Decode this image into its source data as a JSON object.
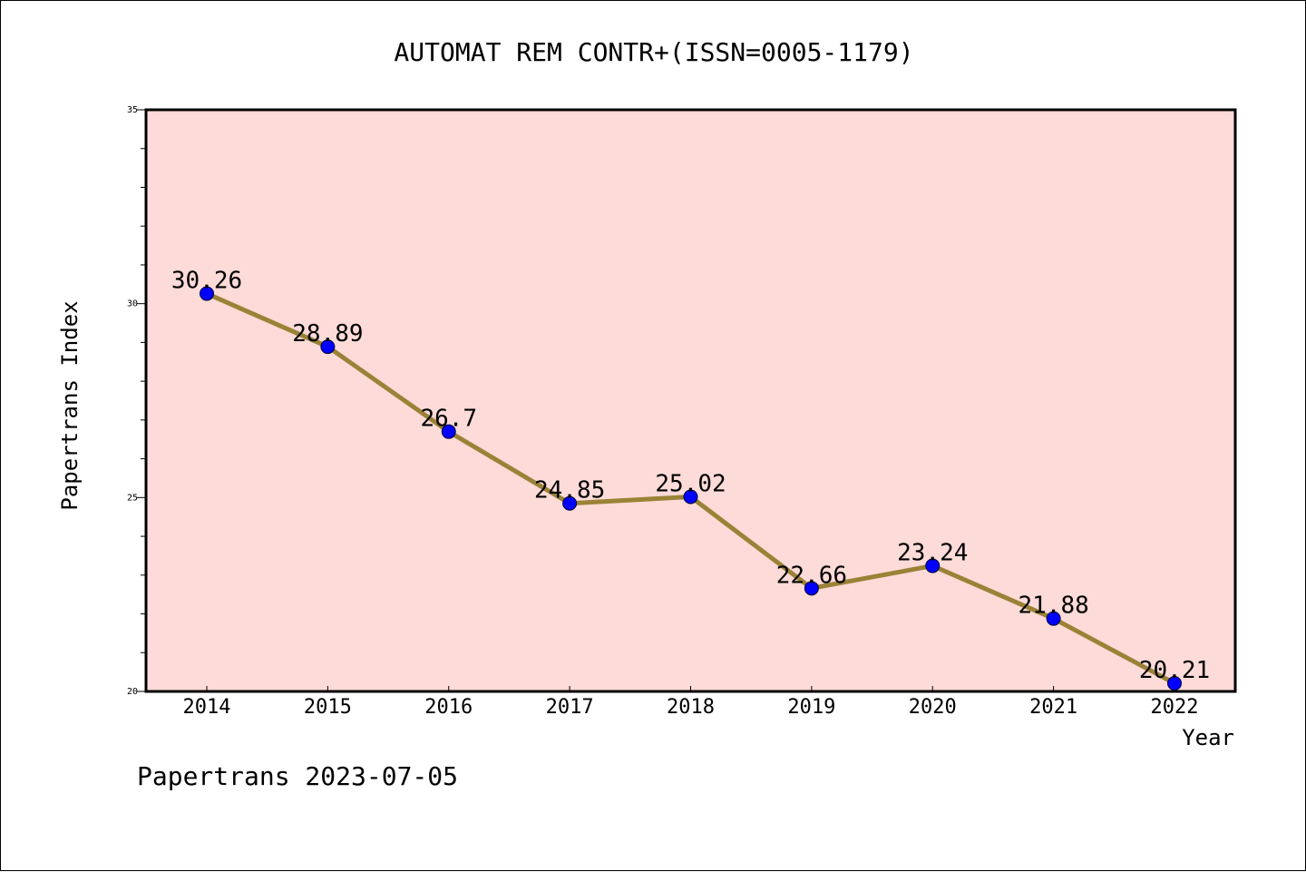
{
  "chart_data": {
    "type": "line",
    "title": "AUTOMAT REM CONTR+(ISSN=0005-1179)",
    "xlabel": "Year",
    "ylabel": "Papertrans Index",
    "categories": [
      "2014",
      "2015",
      "2016",
      "2017",
      "2018",
      "2019",
      "2020",
      "2021",
      "2022"
    ],
    "series": [
      {
        "values": [
          30.26,
          28.89,
          26.7,
          24.85,
          25.02,
          22.66,
          23.24,
          21.88,
          20.21
        ],
        "labels": [
          "30.26",
          "28.89",
          "26.7",
          "24.85",
          "25.02",
          "22.66",
          "23.24",
          "21.88",
          "20.21"
        ]
      }
    ],
    "ylim": [
      20,
      35
    ],
    "y_ticks": [
      "20",
      "25",
      "30",
      "35"
    ],
    "y_minor_step": 1,
    "grid": false,
    "colors": {
      "plot_background": "#fddbd8",
      "line": "#9a8237",
      "marker": "#0000ff"
    }
  },
  "footer": "Papertrans 2023-07-05"
}
